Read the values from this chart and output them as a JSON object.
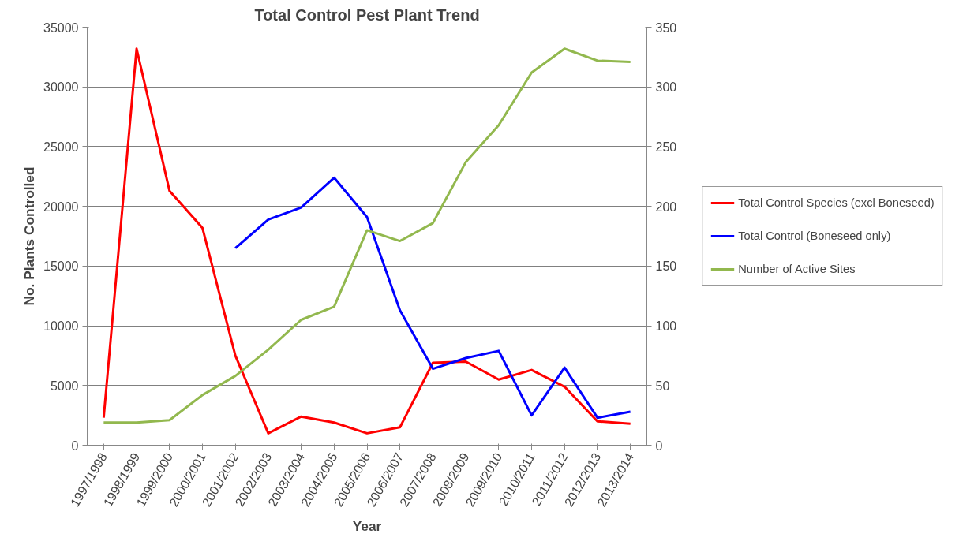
{
  "chart_data": {
    "type": "line",
    "title": "Total Control Pest Plant Trend",
    "xlabel": "Year",
    "ylabel": "No. Plants Controlled",
    "categories": [
      "1997/1998",
      "1998/1999",
      "1999/2000",
      "2000/2001",
      "2001/2002",
      "2002/2003",
      "2003/2004",
      "2004/2005",
      "2005/2006",
      "2006/2007",
      "2007/2008",
      "2008/2009",
      "2009/2010",
      "2010/2011",
      "2011/2012",
      "2012/2013",
      "2013/2014"
    ],
    "series": [
      {
        "name": "Total Control Species (excl Boneseed)",
        "color": "#ff0000",
        "values": [
          2300,
          33200,
          21300,
          18200,
          7500,
          1000,
          2400,
          1900,
          1000,
          1500,
          6900,
          7000,
          5500,
          6300,
          4900,
          2000,
          1800
        ]
      },
      {
        "name": "Total Control (Boneseed only)",
        "color": "#0000ff",
        "values": [
          null,
          null,
          null,
          null,
          16500,
          18900,
          19900,
          22400,
          19100,
          11300,
          6400,
          7300,
          7900,
          2500,
          6500,
          2300,
          2800
        ]
      },
      {
        "name": "Number of Active Sites",
        "color": "#92b84e",
        "axis": "y2",
        "values": [
          19,
          19,
          21,
          42,
          58,
          80,
          105,
          116,
          180,
          171,
          186,
          237,
          268,
          312,
          332,
          322,
          321
        ]
      }
    ],
    "ylim": [
      0,
      35000
    ],
    "yticks": [
      0,
      5000,
      10000,
      15000,
      20000,
      25000,
      30000,
      35000
    ],
    "y2lim": [
      0,
      350
    ],
    "y2ticks": [
      0,
      50,
      100,
      150,
      200,
      250,
      300,
      350
    ],
    "grid": "y",
    "legend": "right",
    "marker": "none",
    "line_style": "solid"
  }
}
